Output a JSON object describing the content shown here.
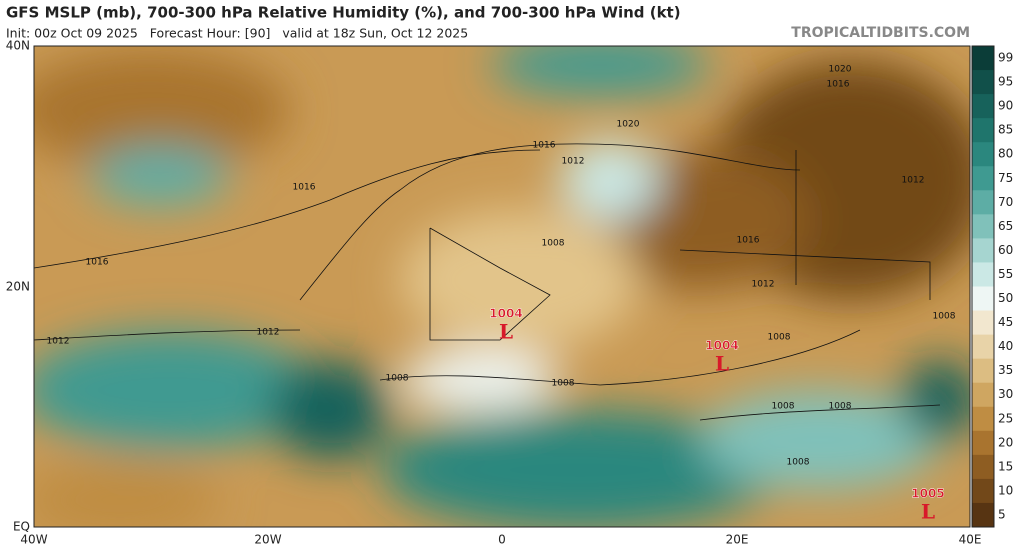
{
  "header": {
    "title": "GFS MSLP (mb), 700-300 hPa Relative Humidity (%), and 700-300 hPa Wind (kt)",
    "subtitle": "Init: 00z Oct 09 2025   Forecast Hour: [90]   valid at 18z Sun, Oct 12 2025",
    "site": "TROPICALTIDBITS.COM"
  },
  "axes": {
    "lat": [
      "40N",
      "20N",
      "EQ"
    ],
    "lon": [
      "40W",
      "20W",
      "0",
      "20E",
      "40E"
    ]
  },
  "colorbar": [
    {
      "label": "99",
      "color": "#0b3d38"
    },
    {
      "label": "95",
      "color": "#11504a"
    },
    {
      "label": "90",
      "color": "#17625b"
    },
    {
      "label": "85",
      "color": "#1f756c"
    },
    {
      "label": "80",
      "color": "#2b877e"
    },
    {
      "label": "75",
      "color": "#3f9a91"
    },
    {
      "label": "70",
      "color": "#5dada5"
    },
    {
      "label": "65",
      "color": "#80c1ba"
    },
    {
      "label": "60",
      "color": "#a6d5d0"
    },
    {
      "label": "55",
      "color": "#cbe8e5"
    },
    {
      "label": "50",
      "color": "#eef6f4"
    },
    {
      "label": "45",
      "color": "#f2e7cf"
    },
    {
      "label": "40",
      "color": "#e8d3a8"
    },
    {
      "label": "35",
      "color": "#dcbd82"
    },
    {
      "label": "30",
      "color": "#cfa661"
    },
    {
      "label": "25",
      "color": "#bf8d43"
    },
    {
      "label": "20",
      "color": "#a9742f"
    },
    {
      "label": "15",
      "color": "#8e5d22"
    },
    {
      "label": "10",
      "color": "#724819"
    },
    {
      "label": "5",
      "color": "#573412"
    }
  ],
  "isobars": [
    "1020",
    "1016",
    "1012",
    "1016",
    "1016",
    "1008",
    "1016",
    "1012",
    "1012",
    "1012",
    "1008",
    "1008",
    "1008",
    "1008",
    "1008",
    "1008",
    "1008",
    "1020",
    "1016",
    "1012"
  ],
  "lows": [
    {
      "pressure": "1004",
      "symbol": "L"
    },
    {
      "pressure": "1004",
      "symbol": "L"
    },
    {
      "pressure": "1005",
      "symbol": "L"
    }
  ]
}
